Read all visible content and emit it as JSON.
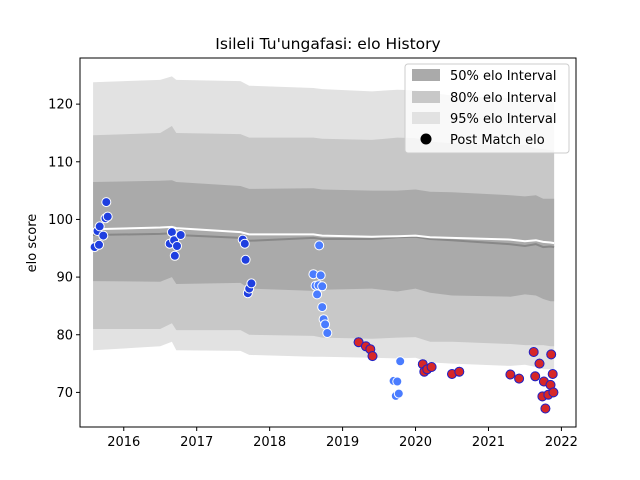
{
  "chart_data": {
    "type": "line",
    "title": "Isileli Tu'ungafasi: elo History",
    "xlabel": "",
    "ylabel": "elo score",
    "xlim": [
      2015.4,
      2022.2
    ],
    "ylim": [
      64,
      128
    ],
    "xticks": [
      2016,
      2017,
      2018,
      2019,
      2020,
      2021,
      2022
    ],
    "xtick_labels": [
      "2016",
      "2017",
      "2018",
      "2019",
      "2020",
      "2021",
      "2022"
    ],
    "yticks": [
      70,
      80,
      90,
      100,
      110,
      120
    ],
    "ytick_labels": [
      "70",
      "80",
      "90",
      "100",
      "110",
      "120"
    ],
    "grid": false,
    "legend_position": "top-right",
    "legend": {
      "i50": "50% elo Interval",
      "i80": "80% elo Interval",
      "i95": "95% elo Interval",
      "post": "Post Match elo"
    },
    "colors": {
      "band50": "#aaaaaa",
      "band80": "#c8c8c8",
      "band95": "#e2e2e2",
      "mean_line": "#ffffff",
      "median_line": "#888888",
      "win_fill": "#1f3fe0",
      "loss_fill": "#d62728",
      "early_fill": "#4a7cff",
      "marker_edge": "#2222cc"
    },
    "band_x": [
      2015.58,
      2016.5,
      2016.66,
      2016.72,
      2017.6,
      2017.72,
      2018.6,
      2018.72,
      2019.4,
      2019.75,
      2020.0,
      2020.2,
      2020.5,
      2021.3,
      2021.5,
      2021.65,
      2021.75,
      2021.85,
      2021.9
    ],
    "band_median": [
      97.3,
      97.5,
      97.6,
      97.3,
      96.8,
      96.3,
      96.8,
      96.6,
      96.6,
      96.9,
      97.0,
      96.6,
      96.4,
      95.7,
      95.4,
      95.7,
      95.2,
      95.3,
      95.2
    ],
    "band_mean": [
      98.3,
      98.6,
      98.7,
      98.5,
      97.8,
      97.4,
      97.4,
      97.2,
      97.0,
      97.1,
      97.2,
      96.9,
      96.8,
      96.5,
      96.2,
      96.4,
      96.1,
      96.0,
      95.9
    ],
    "band50_lo": [
      89.3,
      89.2,
      90.0,
      88.8,
      89.0,
      88.0,
      87.6,
      87.8,
      88.0,
      87.5,
      88.0,
      87.3,
      86.8,
      86.6,
      87.0,
      86.8,
      86.2,
      85.8,
      85.8
    ],
    "band50_hi": [
      106.5,
      106.7,
      106.8,
      106.5,
      105.8,
      105.3,
      105.4,
      105.2,
      105.0,
      105.0,
      105.2,
      104.8,
      104.7,
      104.2,
      104.0,
      104.2,
      103.6,
      103.6,
      103.6
    ],
    "band80_lo": [
      81.0,
      81.0,
      82.0,
      80.8,
      80.8,
      80.0,
      79.8,
      79.5,
      79.3,
      79.5,
      79.6,
      78.8,
      78.8,
      78.4,
      78.2,
      78.2,
      78.2,
      78.0,
      78.0
    ],
    "band80_hi": [
      114.6,
      115.0,
      116.2,
      115.0,
      114.8,
      114.2,
      114.2,
      114.0,
      113.8,
      114.2,
      114.1,
      113.5,
      113.2,
      112.8,
      113.0,
      112.3,
      112.2,
      112.0,
      112.0
    ],
    "band95_lo": [
      77.3,
      78.0,
      78.8,
      77.3,
      77.2,
      76.5,
      76.2,
      76.2,
      76.0,
      75.9,
      76.0,
      75.2,
      75.0,
      74.6,
      74.8,
      74.4,
      74.0,
      74.0,
      74.0
    ],
    "band95_hi": [
      123.8,
      124.2,
      124.8,
      124.2,
      124.0,
      123.2,
      122.8,
      122.6,
      122.2,
      122.5,
      122.4,
      122.0,
      121.5,
      121.0,
      121.3,
      120.8,
      120.5,
      120.3,
      120.3
    ],
    "post_match": [
      {
        "x": 2015.6,
        "y": 95.2,
        "r": "w"
      },
      {
        "x": 2015.66,
        "y": 95.6,
        "r": "w"
      },
      {
        "x": 2015.64,
        "y": 98.0,
        "r": "w"
      },
      {
        "x": 2015.67,
        "y": 98.8,
        "r": "w"
      },
      {
        "x": 2015.72,
        "y": 97.2,
        "r": "w"
      },
      {
        "x": 2015.75,
        "y": 100.2,
        "r": "w"
      },
      {
        "x": 2015.78,
        "y": 100.5,
        "r": "w"
      },
      {
        "x": 2015.76,
        "y": 103.0,
        "r": "w"
      },
      {
        "x": 2016.63,
        "y": 95.8,
        "r": "w"
      },
      {
        "x": 2016.66,
        "y": 97.8,
        "r": "w"
      },
      {
        "x": 2016.69,
        "y": 96.4,
        "r": "w"
      },
      {
        "x": 2016.7,
        "y": 93.7,
        "r": "w"
      },
      {
        "x": 2016.73,
        "y": 95.4,
        "r": "w"
      },
      {
        "x": 2016.78,
        "y": 97.3,
        "r": "w"
      },
      {
        "x": 2017.63,
        "y": 96.5,
        "r": "w"
      },
      {
        "x": 2017.66,
        "y": 95.8,
        "r": "w"
      },
      {
        "x": 2017.67,
        "y": 93.0,
        "r": "w"
      },
      {
        "x": 2017.7,
        "y": 87.2,
        "r": "w"
      },
      {
        "x": 2017.72,
        "y": 88.0,
        "r": "w"
      },
      {
        "x": 2017.75,
        "y": 88.9,
        "r": "w"
      },
      {
        "x": 2018.6,
        "y": 90.5,
        "r": "e"
      },
      {
        "x": 2018.63,
        "y": 88.5,
        "r": "e"
      },
      {
        "x": 2018.65,
        "y": 87.0,
        "r": "e"
      },
      {
        "x": 2018.67,
        "y": 88.6,
        "r": "e"
      },
      {
        "x": 2018.68,
        "y": 95.5,
        "r": "e"
      },
      {
        "x": 2018.7,
        "y": 90.3,
        "r": "e"
      },
      {
        "x": 2018.72,
        "y": 88.4,
        "r": "e"
      },
      {
        "x": 2018.72,
        "y": 84.8,
        "r": "e"
      },
      {
        "x": 2018.74,
        "y": 82.7,
        "r": "e"
      },
      {
        "x": 2018.76,
        "y": 81.8,
        "r": "e"
      },
      {
        "x": 2018.79,
        "y": 80.3,
        "r": "e"
      },
      {
        "x": 2019.22,
        "y": 78.7,
        "r": "l"
      },
      {
        "x": 2019.32,
        "y": 78.0,
        "r": "l"
      },
      {
        "x": 2019.38,
        "y": 77.5,
        "r": "l"
      },
      {
        "x": 2019.41,
        "y": 76.3,
        "r": "l"
      },
      {
        "x": 2019.7,
        "y": 72.0,
        "r": "e"
      },
      {
        "x": 2019.73,
        "y": 69.4,
        "r": "e"
      },
      {
        "x": 2019.75,
        "y": 71.9,
        "r": "e"
      },
      {
        "x": 2019.77,
        "y": 69.8,
        "r": "e"
      },
      {
        "x": 2019.79,
        "y": 75.4,
        "r": "e"
      },
      {
        "x": 2020.1,
        "y": 74.9,
        "r": "l"
      },
      {
        "x": 2020.12,
        "y": 73.6,
        "r": "l"
      },
      {
        "x": 2020.16,
        "y": 74.0,
        "r": "l"
      },
      {
        "x": 2020.22,
        "y": 74.4,
        "r": "l"
      },
      {
        "x": 2020.5,
        "y": 73.2,
        "r": "l"
      },
      {
        "x": 2020.6,
        "y": 73.6,
        "r": "l"
      },
      {
        "x": 2021.3,
        "y": 73.1,
        "r": "l"
      },
      {
        "x": 2021.42,
        "y": 72.4,
        "r": "l"
      },
      {
        "x": 2021.62,
        "y": 77.0,
        "r": "l"
      },
      {
        "x": 2021.64,
        "y": 72.8,
        "r": "l"
      },
      {
        "x": 2021.7,
        "y": 75.0,
        "r": "l"
      },
      {
        "x": 2021.74,
        "y": 69.3,
        "r": "l"
      },
      {
        "x": 2021.76,
        "y": 71.9,
        "r": "l"
      },
      {
        "x": 2021.78,
        "y": 67.2,
        "r": "l"
      },
      {
        "x": 2021.82,
        "y": 69.6,
        "r": "l"
      },
      {
        "x": 2021.85,
        "y": 71.3,
        "r": "l"
      },
      {
        "x": 2021.86,
        "y": 76.6,
        "r": "l"
      },
      {
        "x": 2021.88,
        "y": 73.2,
        "r": "l"
      },
      {
        "x": 2021.89,
        "y": 70.0,
        "r": "l"
      }
    ]
  }
}
